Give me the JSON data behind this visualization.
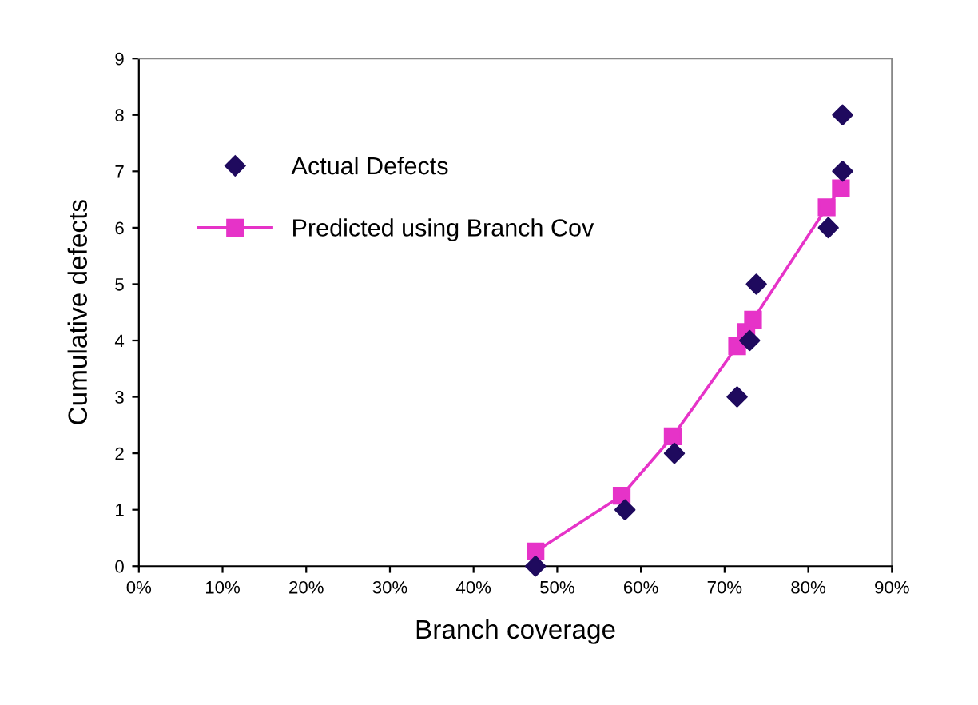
{
  "chart_data": {
    "type": "scatter",
    "xlabel": "Branch coverage",
    "ylabel": "Cumulative defects",
    "xlim": [
      0,
      90
    ],
    "xticks": [
      {
        "value": 0,
        "label": "0%"
      },
      {
        "value": 10,
        "label": "10%"
      },
      {
        "value": 20,
        "label": "20%"
      },
      {
        "value": 30,
        "label": "30%"
      },
      {
        "value": 40,
        "label": "40%"
      },
      {
        "value": 50,
        "label": "50%"
      },
      {
        "value": 60,
        "label": "60%"
      },
      {
        "value": 70,
        "label": "70%"
      },
      {
        "value": 80,
        "label": "80%"
      },
      {
        "value": 90,
        "label": "90%"
      }
    ],
    "ylim": [
      0,
      9
    ],
    "yticks": [
      0,
      1,
      2,
      3,
      4,
      5,
      6,
      7,
      8,
      9
    ],
    "grid": false,
    "legend": "top left",
    "series": [
      {
        "name": "Actual Defects",
        "marker": "diamond",
        "color": "#1f0a5e",
        "x": [
          47.4,
          58.1,
          64.0,
          71.5,
          73.0,
          73.8,
          82.4,
          84.1,
          84.1
        ],
        "values": [
          0,
          1,
          2,
          3,
          4,
          5,
          6,
          7,
          8
        ]
      },
      {
        "name": "Predicted using Branch Cov",
        "type": "line",
        "marker": "square",
        "line_style": "solid",
        "color": "#e633c8",
        "x": [
          47.4,
          57.7,
          63.8,
          71.5,
          72.6,
          73.4,
          82.2,
          83.9
        ],
        "values": [
          0.26,
          1.25,
          2.3,
          3.9,
          4.15,
          4.37,
          6.36,
          6.7
        ]
      }
    ]
  }
}
